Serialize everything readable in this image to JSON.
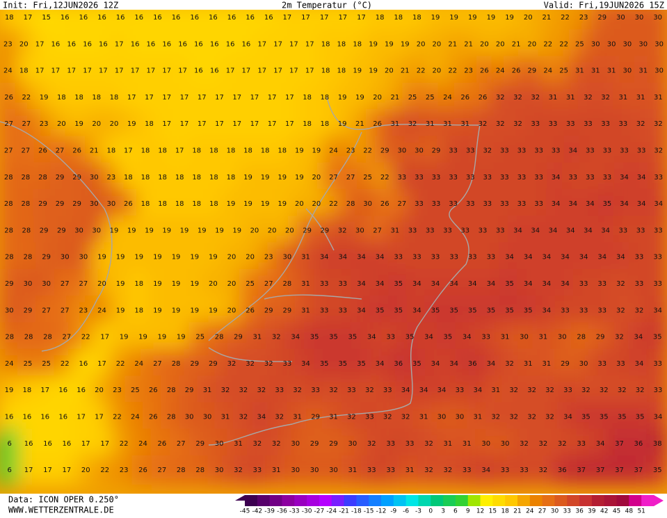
{
  "header": {
    "init": "Init: Fri,12JUN2026 12Z",
    "title": "2m Temperatur (°C)",
    "valid": "Valid: Fri,19JUN2026 15Z"
  },
  "grid": {
    "rows": [
      [
        18,
        17,
        15,
        16,
        16,
        16,
        16,
        16,
        16,
        16,
        16,
        16,
        16,
        16,
        16,
        17,
        17,
        17,
        17,
        17,
        18,
        18,
        18,
        19,
        19,
        19,
        19,
        19,
        20,
        21,
        22,
        23,
        29,
        30,
        30,
        30
      ],
      [
        23,
        20,
        17,
        16,
        16,
        16,
        16,
        17,
        16,
        16,
        16,
        16,
        16,
        16,
        16,
        16,
        17,
        17,
        17,
        17,
        18,
        18,
        18,
        19,
        19,
        19,
        20,
        20,
        21,
        21,
        20,
        20,
        21,
        20,
        22,
        22,
        25,
        30,
        30,
        30,
        30,
        30
      ],
      [
        24,
        18,
        17,
        17,
        17,
        17,
        17,
        17,
        17,
        17,
        17,
        17,
        16,
        16,
        17,
        17,
        17,
        17,
        17,
        17,
        18,
        18,
        19,
        19,
        20,
        21,
        22,
        20,
        22,
        23,
        26,
        24,
        26,
        29,
        24,
        25,
        31,
        31,
        31,
        30,
        31,
        30
      ],
      [
        26,
        22,
        19,
        18,
        18,
        18,
        18,
        17,
        17,
        17,
        17,
        17,
        17,
        17,
        17,
        17,
        17,
        18,
        18,
        19,
        19,
        20,
        21,
        25,
        25,
        24,
        26,
        26,
        32,
        32,
        32,
        31,
        31,
        32,
        32,
        31,
        31,
        31
      ],
      [
        27,
        27,
        23,
        20,
        19,
        20,
        20,
        19,
        18,
        17,
        17,
        17,
        17,
        17,
        17,
        17,
        17,
        18,
        18,
        19,
        21,
        26,
        31,
        32,
        31,
        31,
        31,
        32,
        32,
        32,
        33,
        33,
        33,
        33,
        33,
        33,
        32,
        32
      ],
      [
        27,
        27,
        26,
        27,
        26,
        21,
        18,
        17,
        18,
        18,
        17,
        18,
        18,
        18,
        18,
        18,
        18,
        19,
        19,
        24,
        23,
        22,
        29,
        30,
        30,
        29,
        33,
        33,
        32,
        33,
        33,
        33,
        33,
        34,
        33,
        33,
        33,
        33,
        32
      ],
      [
        28,
        28,
        28,
        29,
        29,
        30,
        23,
        18,
        18,
        18,
        18,
        18,
        18,
        18,
        19,
        19,
        19,
        19,
        20,
        27,
        27,
        25,
        22,
        33,
        33,
        33,
        33,
        33,
        33,
        33,
        33,
        33,
        34,
        33,
        33,
        33,
        34,
        34,
        33
      ],
      [
        28,
        28,
        29,
        29,
        29,
        30,
        30,
        26,
        18,
        18,
        18,
        18,
        18,
        19,
        19,
        19,
        19,
        20,
        20,
        22,
        28,
        30,
        26,
        27,
        33,
        33,
        33,
        33,
        33,
        33,
        33,
        33,
        34,
        34,
        34,
        35,
        34,
        34,
        34
      ],
      [
        28,
        28,
        29,
        29,
        30,
        30,
        19,
        19,
        19,
        19,
        19,
        19,
        19,
        19,
        20,
        20,
        20,
        29,
        29,
        32,
        30,
        27,
        31,
        33,
        33,
        33,
        33,
        33,
        33,
        34,
        34,
        34,
        34,
        34,
        34,
        33,
        33,
        33
      ],
      [
        28,
        28,
        29,
        30,
        30,
        19,
        19,
        19,
        19,
        19,
        19,
        19,
        20,
        20,
        23,
        30,
        31,
        34,
        34,
        34,
        34,
        33,
        33,
        33,
        33,
        33,
        33,
        34,
        34,
        34,
        34,
        34,
        34,
        34,
        33,
        33
      ],
      [
        29,
        30,
        30,
        27,
        27,
        20,
        19,
        18,
        19,
        19,
        19,
        20,
        20,
        25,
        27,
        28,
        31,
        33,
        33,
        34,
        34,
        35,
        34,
        34,
        34,
        34,
        34,
        35,
        34,
        34,
        34,
        33,
        33,
        32,
        33,
        33
      ],
      [
        30,
        29,
        27,
        27,
        23,
        24,
        19,
        18,
        19,
        19,
        19,
        19,
        20,
        26,
        29,
        29,
        31,
        33,
        33,
        34,
        35,
        35,
        34,
        35,
        35,
        35,
        35,
        35,
        35,
        34,
        33,
        33,
        33,
        32,
        32,
        34
      ],
      [
        28,
        28,
        28,
        27,
        22,
        17,
        19,
        19,
        19,
        19,
        25,
        28,
        29,
        31,
        32,
        34,
        35,
        35,
        35,
        34,
        33,
        35,
        34,
        35,
        34,
        33,
        31,
        30,
        31,
        30,
        28,
        29,
        32,
        34,
        35
      ],
      [
        24,
        25,
        25,
        22,
        16,
        17,
        22,
        24,
        27,
        28,
        29,
        29,
        32,
        32,
        32,
        33,
        34,
        35,
        35,
        35,
        34,
        36,
        35,
        34,
        34,
        36,
        34,
        32,
        31,
        31,
        29,
        30,
        33,
        33,
        34,
        33
      ],
      [
        19,
        18,
        17,
        16,
        16,
        20,
        23,
        25,
        26,
        28,
        29,
        31,
        32,
        32,
        32,
        33,
        32,
        33,
        32,
        33,
        32,
        33,
        34,
        34,
        34,
        33,
        34,
        31,
        32,
        32,
        32,
        33,
        32,
        32,
        32,
        32,
        33
      ],
      [
        16,
        16,
        16,
        16,
        17,
        17,
        22,
        24,
        26,
        28,
        30,
        30,
        31,
        32,
        34,
        32,
        31,
        29,
        31,
        32,
        33,
        32,
        32,
        31,
        30,
        30,
        31,
        32,
        32,
        32,
        32,
        34,
        35,
        35,
        35,
        35,
        34
      ],
      [
        6,
        16,
        16,
        16,
        17,
        17,
        22,
        24,
        26,
        27,
        29,
        30,
        31,
        32,
        32,
        30,
        29,
        29,
        30,
        32,
        33,
        33,
        32,
        31,
        31,
        30,
        30,
        32,
        32,
        32,
        33,
        34,
        37,
        36,
        38
      ],
      [
        6,
        17,
        17,
        17,
        20,
        22,
        23,
        26,
        27,
        28,
        28,
        30,
        32,
        33,
        31,
        30,
        30,
        30,
        31,
        33,
        33,
        31,
        32,
        32,
        33,
        34,
        33,
        33,
        32,
        36,
        37,
        37,
        37,
        37,
        35
      ]
    ]
  },
  "colorbar": {
    "labels": [
      -45,
      -42,
      -39,
      -36,
      -33,
      -30,
      -27,
      -24,
      -21,
      -18,
      -15,
      -12,
      -9,
      -6,
      -3,
      0,
      3,
      6,
      9,
      12,
      15,
      18,
      21,
      24,
      27,
      30,
      33,
      36,
      39,
      42,
      45,
      48,
      51
    ]
  },
  "footer": {
    "data": "Data: ICON OPER 0.250°",
    "site": "WWW.WETTERZENTRALE.DE"
  }
}
